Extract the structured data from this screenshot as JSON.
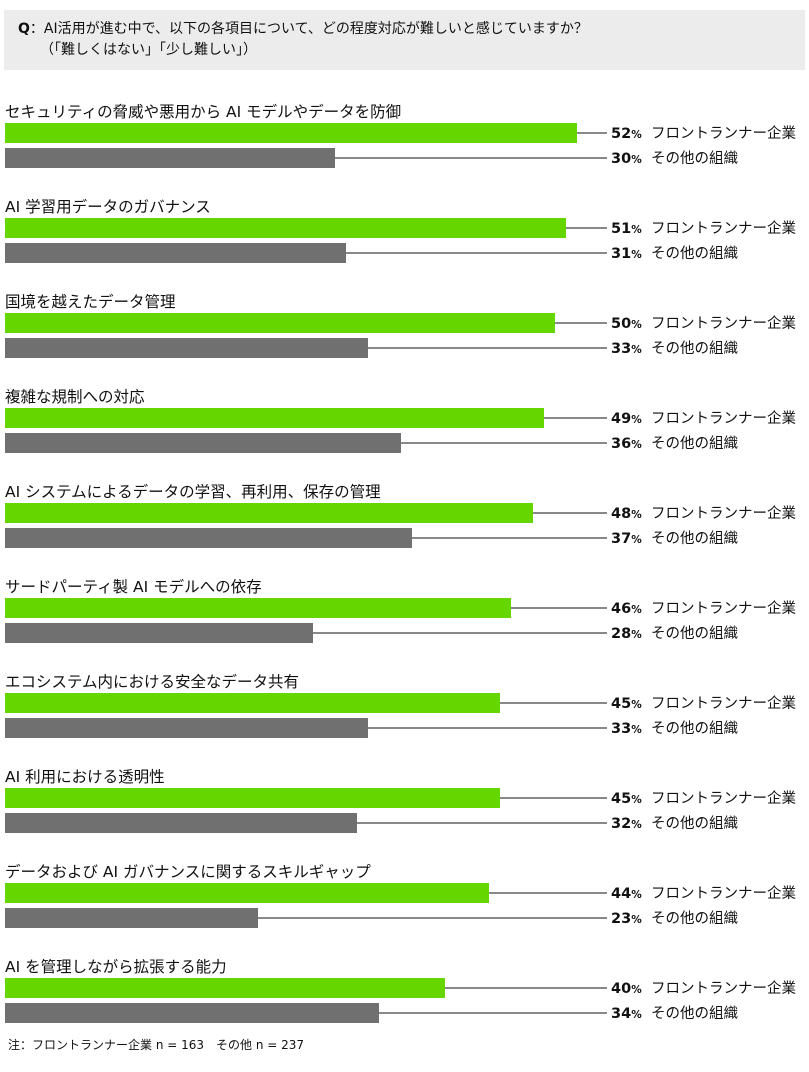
{
  "question": {
    "prefix": "Q",
    "line1": "：AI活用が進む中で、以下の各項目について、どの程度対応が難しいと感じていますか？",
    "line2": "（「難しくはない」「少し難しい」）"
  },
  "note": "注：フロントランナー企業 n = 163　その他 n = 237",
  "colors": {
    "frontrunner": "#66d600",
    "others": "#707070"
  },
  "chart_data": {
    "type": "bar",
    "orientation": "horizontal",
    "unit": "%",
    "xlim": [
      0,
      100
    ],
    "series": [
      {
        "name": "フロントランナー企業",
        "color": "#66d600",
        "values": [
          52,
          51,
          50,
          49,
          48,
          46,
          45,
          45,
          44,
          40
        ]
      },
      {
        "name": "その他の組織",
        "color": "#707070",
        "values": [
          30,
          31,
          33,
          36,
          37,
          28,
          33,
          32,
          23,
          34
        ]
      }
    ],
    "categories": [
      "セキュリティの脅威や悪用から AI モデルやデータを防御",
      "AI 学習用データのガバナンス",
      "国境を越えたデータ管理",
      "複雑な規制への対応",
      "AI システムによるデータの学習、再利用、保存の管理",
      "サードパーティ製 AI モデルへの依存",
      "エコシステム内における安全なデータ共有",
      "AI 利用における透明性",
      "データおよび AI ガバナンスに関するスキルギャップ",
      "AI を管理しながら拡張する能力"
    ],
    "legend": "inline-right",
    "grid": false
  }
}
